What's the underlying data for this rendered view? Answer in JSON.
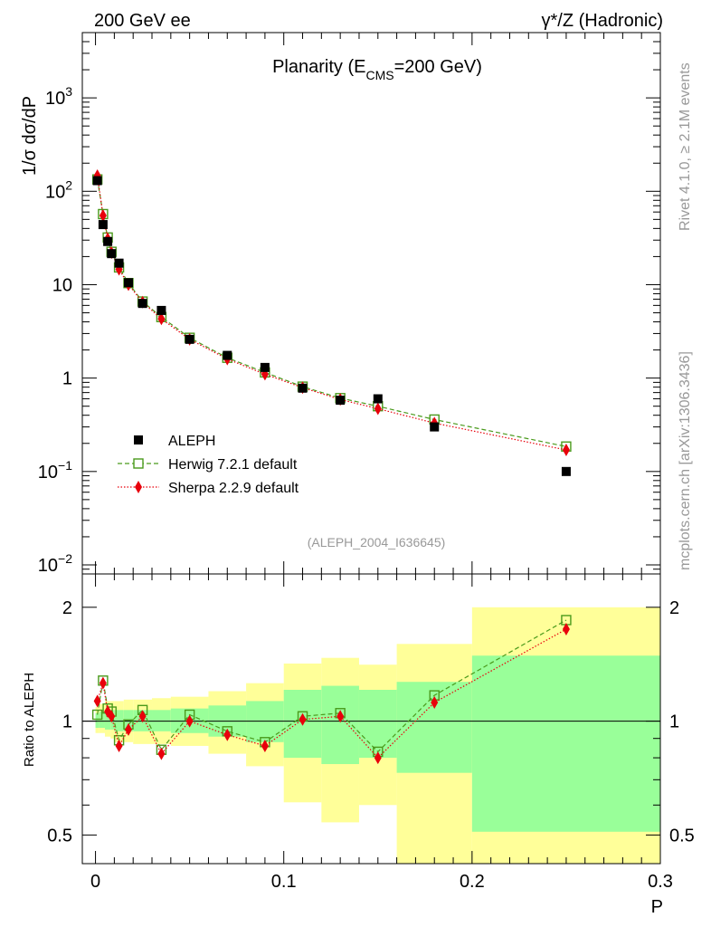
{
  "header": {
    "left": "200 GeV ee",
    "right_gamma": "γ",
    "right_rest": "*/Z (Hadronic)"
  },
  "side": {
    "rivet": "Rivet 4.1.0, ≥ 2.1M events",
    "mcplots": "mcplots.cern.ch [arXiv:1306.3436]"
  },
  "chart_data": [
    {
      "type": "scatter",
      "title_pre": "Planarity (E",
      "title_sub": "CMS",
      "title_post": "=200 GeV)",
      "ylabel": "1/σ  dσ/dP",
      "yscale": "log",
      "ylim": [
        0.008,
        5000
      ],
      "xlim": [
        -0.007,
        0.3
      ],
      "yticks": [
        {
          "value": 1000,
          "base": "10",
          "exp": "3"
        },
        {
          "value": 100,
          "base": "10",
          "exp": "2"
        },
        {
          "value": 10,
          "base": "10",
          "exp": ""
        },
        {
          "value": 1,
          "base": "1",
          "exp": ""
        },
        {
          "value": 0.1,
          "base": "10",
          "exp": "−1"
        },
        {
          "value": 0.01,
          "base": "10",
          "exp": "−2"
        }
      ],
      "analysis_label": "(ALEPH_2004_I636645)",
      "series": [
        {
          "name": "ALEPH",
          "color": "#000000",
          "x": [
            0.001,
            0.004,
            0.0065,
            0.0085,
            0.0125,
            0.0175,
            0.025,
            0.035,
            0.05,
            0.07,
            0.09,
            0.11,
            0.13,
            0.15,
            0.18,
            0.25
          ],
          "values": [
            130,
            44,
            29,
            21.5,
            17,
            10.5,
            6.3,
            5.3,
            2.6,
            1.75,
            1.3,
            0.78,
            0.58,
            0.6,
            0.3,
            0.1
          ]
        },
        {
          "name": "Herwig 7.2.1 default",
          "color": "#4a9a1c",
          "x": [
            0.001,
            0.004,
            0.0065,
            0.0085,
            0.0125,
            0.0175,
            0.025,
            0.035,
            0.05,
            0.07,
            0.09,
            0.11,
            0.13,
            0.15,
            0.18,
            0.25
          ],
          "values": [
            134,
            57,
            32,
            22.5,
            15.3,
            10.4,
            6.6,
            4.5,
            2.7,
            1.65,
            1.15,
            0.81,
            0.61,
            0.5,
            0.36,
            0.185
          ]
        },
        {
          "name": "Sherpa 2.2.9 default",
          "color": "#e8000b",
          "x": [
            0.001,
            0.004,
            0.0065,
            0.0085,
            0.0125,
            0.0175,
            0.025,
            0.035,
            0.05,
            0.07,
            0.09,
            0.11,
            0.13,
            0.15,
            0.18,
            0.25
          ],
          "values": [
            147,
            55,
            31,
            22,
            14.6,
            10.0,
            6.5,
            4.3,
            2.6,
            1.6,
            1.1,
            0.79,
            0.59,
            0.47,
            0.33,
            0.17
          ]
        }
      ]
    },
    {
      "type": "scatter",
      "ylabel": "Ratio to ALEPH",
      "xlabel": "P",
      "yscale": "log",
      "ylim": [
        0.42,
        2.45
      ],
      "xlim": [
        -0.007,
        0.3
      ],
      "yticks": [
        {
          "value": 2,
          "label": "2"
        },
        {
          "value": 1,
          "label": "1"
        },
        {
          "value": 0.5,
          "label": "0.5"
        }
      ],
      "xticks": [
        {
          "value": 0,
          "label": "0"
        },
        {
          "value": 0.1,
          "label": "0.1"
        },
        {
          "value": 0.2,
          "label": "0.2"
        },
        {
          "value": 0.3,
          "label": "0.3"
        }
      ],
      "bands": [
        {
          "x0": 0.0,
          "x1": 0.002,
          "green": [
            0.96,
            1.05
          ],
          "yellow": [
            0.93,
            1.09
          ]
        },
        {
          "x0": 0.002,
          "x1": 0.005,
          "green": [
            0.96,
            1.06
          ],
          "yellow": [
            0.93,
            1.11
          ]
        },
        {
          "x0": 0.005,
          "x1": 0.008,
          "green": [
            0.95,
            1.07
          ],
          "yellow": [
            0.91,
            1.13
          ]
        },
        {
          "x0": 0.008,
          "x1": 0.01,
          "green": [
            0.95,
            1.07
          ],
          "yellow": [
            0.9,
            1.13
          ]
        },
        {
          "x0": 0.01,
          "x1": 0.015,
          "green": [
            0.94,
            1.07
          ],
          "yellow": [
            0.88,
            1.13
          ]
        },
        {
          "x0": 0.015,
          "x1": 0.02,
          "green": [
            0.94,
            1.07
          ],
          "yellow": [
            0.88,
            1.14
          ]
        },
        {
          "x0": 0.02,
          "x1": 0.03,
          "green": [
            0.94,
            1.07
          ],
          "yellow": [
            0.87,
            1.14
          ]
        },
        {
          "x0": 0.03,
          "x1": 0.04,
          "green": [
            0.94,
            1.07
          ],
          "yellow": [
            0.87,
            1.15
          ]
        },
        {
          "x0": 0.04,
          "x1": 0.06,
          "green": [
            0.93,
            1.08
          ],
          "yellow": [
            0.86,
            1.16
          ]
        },
        {
          "x0": 0.06,
          "x1": 0.08,
          "green": [
            0.91,
            1.1
          ],
          "yellow": [
            0.82,
            1.2
          ]
        },
        {
          "x0": 0.08,
          "x1": 0.1,
          "green": [
            0.88,
            1.13
          ],
          "yellow": [
            0.76,
            1.26
          ]
        },
        {
          "x0": 0.1,
          "x1": 0.12,
          "green": [
            0.8,
            1.21
          ],
          "yellow": [
            0.61,
            1.42
          ]
        },
        {
          "x0": 0.12,
          "x1": 0.14,
          "green": [
            0.77,
            1.24
          ],
          "yellow": [
            0.54,
            1.47
          ]
        },
        {
          "x0": 0.14,
          "x1": 0.16,
          "green": [
            0.8,
            1.21
          ],
          "yellow": [
            0.6,
            1.41
          ]
        },
        {
          "x0": 0.16,
          "x1": 0.2,
          "green": [
            0.73,
            1.27
          ],
          "yellow": [
            0.4,
            1.6
          ]
        },
        {
          "x0": 0.2,
          "x1": 0.3,
          "green": [
            0.51,
            1.49
          ],
          "yellow": [
            0.4,
            2.0
          ]
        }
      ],
      "series": [
        {
          "name": "Herwig 7.2.1 default",
          "color": "#4a9a1c",
          "x": [
            0.001,
            0.004,
            0.0065,
            0.0085,
            0.0125,
            0.0175,
            0.025,
            0.035,
            0.05,
            0.07,
            0.09,
            0.11,
            0.13,
            0.15,
            0.18,
            0.25
          ],
          "values": [
            1.04,
            1.28,
            1.08,
            1.06,
            0.89,
            0.98,
            1.07,
            0.84,
            1.04,
            0.94,
            0.88,
            1.03,
            1.05,
            0.83,
            1.17,
            1.85
          ]
        },
        {
          "name": "Sherpa 2.2.9 default",
          "color": "#e8000b",
          "x": [
            0.001,
            0.004,
            0.0065,
            0.0085,
            0.0125,
            0.0175,
            0.025,
            0.035,
            0.05,
            0.07,
            0.09,
            0.11,
            0.13,
            0.15,
            0.18,
            0.25
          ],
          "values": [
            1.13,
            1.26,
            1.06,
            1.03,
            0.86,
            0.95,
            1.03,
            0.82,
            1.0,
            0.92,
            0.86,
            1.01,
            1.03,
            0.8,
            1.12,
            1.75
          ]
        }
      ]
    }
  ]
}
